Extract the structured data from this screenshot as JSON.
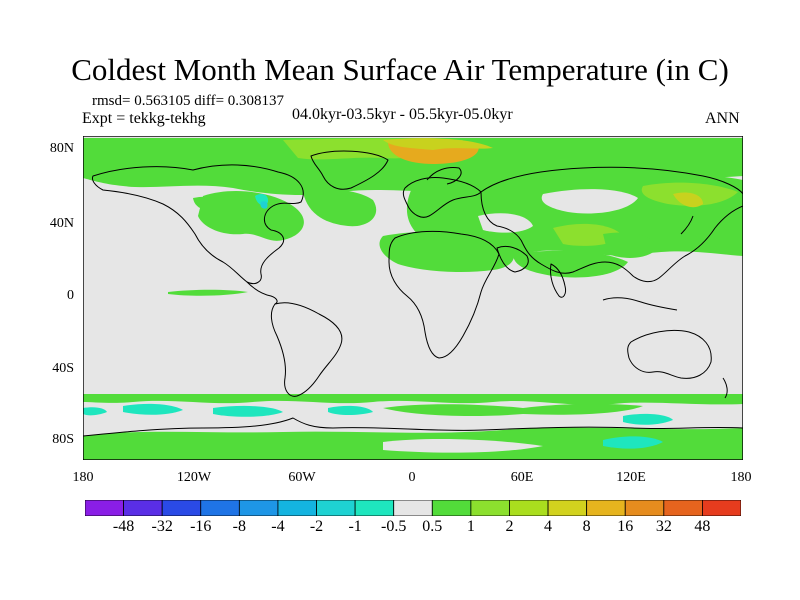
{
  "title": "Coldest Month Mean Surface Air Temperature (in C)",
  "stats": "rmsd= 0.563105 diff= 0.308137",
  "expt": "Expt = tekkg-tekhg",
  "period": "04.0kyr-03.5kyr - 05.5kyr-05.0kyr",
  "season": "ANN",
  "lat_labels": [
    "80N",
    "40N",
    "0",
    "40S",
    "80S"
  ],
  "lon_labels": [
    "180",
    "120W",
    "60W",
    "0",
    "60E",
    "120E",
    "180"
  ],
  "colorbar": {
    "labels": [
      "-48",
      "-32",
      "-16",
      "-8",
      "-4",
      "-2",
      "-1",
      "-0.5",
      "0.5",
      "1",
      "2",
      "4",
      "8",
      "16",
      "32",
      "48"
    ],
    "colors": [
      "#8a1ee6",
      "#5a2ee6",
      "#2a4ae6",
      "#1f74e6",
      "#1e96e6",
      "#14b4e0",
      "#1ed2d2",
      "#1ee6be",
      "#e6e6e6",
      "#52dc3a",
      "#8ce02e",
      "#aade1e",
      "#d2d21e",
      "#e6b41e",
      "#e68c1e",
      "#e6641e",
      "#e63c1e"
    ]
  },
  "colors": {
    "missing": "#e6e6e6",
    "small_warm": "#52dc3a",
    "warm": "#8ce02e",
    "moderate": "#c8d21e",
    "strong": "#e6aa1e",
    "cool": "#1ee6be",
    "cooler": "#1ed2d2"
  }
}
